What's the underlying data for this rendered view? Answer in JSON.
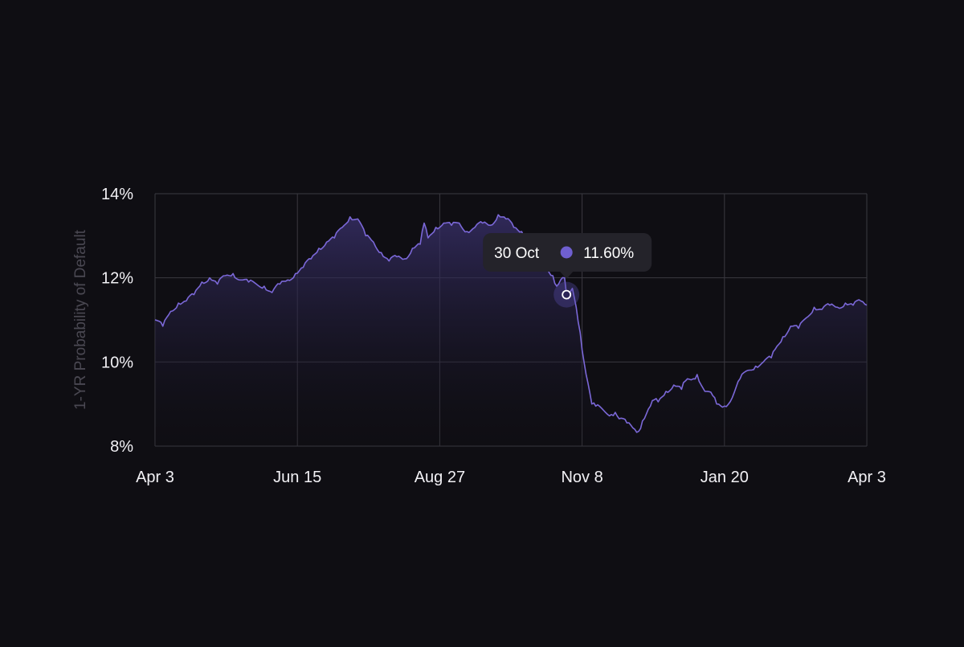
{
  "colors": {
    "background": "#0f0e13",
    "line": "#7b68d8",
    "area_top": "#3b3270",
    "grid": "#3a3940",
    "tooltip_bg": "#24232a",
    "tooltip_dot": "#6f5fd0",
    "tick_text": "#f2f1f5",
    "axis_title": "#4a4852"
  },
  "chart_data": {
    "type": "area",
    "title": "",
    "xlabel": "",
    "ylabel": "1-YR Probability of Default",
    "ylim": [
      8,
      14
    ],
    "y_ticks": [
      "14%",
      "12%",
      "10%",
      "8%"
    ],
    "x_ticks": [
      "Apr 3",
      "Jun 15",
      "Aug 27",
      "Nov 8",
      "Jan 20",
      "Apr 3"
    ],
    "grid": true,
    "legend": "none",
    "x_range_days": [
      0,
      365
    ],
    "series": [
      {
        "values": [
          [
            0,
            11.0
          ],
          [
            4,
            10.85
          ],
          [
            8,
            11.2
          ],
          [
            12,
            11.4
          ],
          [
            16,
            11.45
          ],
          [
            20,
            11.6
          ],
          [
            24,
            11.9
          ],
          [
            28,
            12.0
          ],
          [
            32,
            11.85
          ],
          [
            36,
            12.05
          ],
          [
            40,
            12.1
          ],
          [
            44,
            11.95
          ],
          [
            48,
            11.9
          ],
          [
            52,
            11.85
          ],
          [
            56,
            11.8
          ],
          [
            60,
            11.65
          ],
          [
            64,
            11.85
          ],
          [
            68,
            11.95
          ],
          [
            72,
            12.1
          ],
          [
            76,
            12.25
          ],
          [
            80,
            12.45
          ],
          [
            84,
            12.7
          ],
          [
            88,
            12.85
          ],
          [
            92,
            12.95
          ],
          [
            96,
            13.2
          ],
          [
            100,
            13.45
          ],
          [
            104,
            13.4
          ],
          [
            108,
            13.0
          ],
          [
            112,
            12.85
          ],
          [
            116,
            12.6
          ],
          [
            120,
            12.4
          ],
          [
            124,
            12.5
          ],
          [
            128,
            12.45
          ],
          [
            132,
            12.7
          ],
          [
            136,
            12.8
          ],
          [
            138,
            13.3
          ],
          [
            140,
            12.95
          ],
          [
            144,
            13.2
          ],
          [
            148,
            13.3
          ],
          [
            152,
            13.25
          ],
          [
            156,
            13.3
          ],
          [
            160,
            13.1
          ],
          [
            164,
            13.2
          ],
          [
            168,
            13.3
          ],
          [
            172,
            13.25
          ],
          [
            176,
            13.5
          ],
          [
            180,
            13.4
          ],
          [
            184,
            13.2
          ],
          [
            188,
            13.1
          ],
          [
            192,
            12.9
          ],
          [
            196,
            12.6
          ],
          [
            200,
            12.3
          ],
          [
            204,
            12.05
          ],
          [
            206,
            11.8
          ],
          [
            208,
            11.95
          ],
          [
            210,
            12.0
          ],
          [
            211,
            11.6
          ],
          [
            212,
            11.5
          ],
          [
            214,
            11.75
          ],
          [
            216,
            11.3
          ],
          [
            218,
            10.7
          ],
          [
            220,
            10.0
          ],
          [
            222,
            9.5
          ],
          [
            224,
            9.0
          ],
          [
            226,
            8.95
          ],
          [
            230,
            8.85
          ],
          [
            234,
            8.75
          ],
          [
            236,
            8.8
          ],
          [
            238,
            8.65
          ],
          [
            242,
            8.55
          ],
          [
            246,
            8.4
          ],
          [
            248,
            8.35
          ],
          [
            250,
            8.6
          ],
          [
            254,
            8.95
          ],
          [
            256,
            9.1
          ],
          [
            258,
            9.05
          ],
          [
            262,
            9.3
          ],
          [
            266,
            9.45
          ],
          [
            270,
            9.35
          ],
          [
            272,
            9.55
          ],
          [
            276,
            9.6
          ],
          [
            278,
            9.7
          ],
          [
            282,
            9.3
          ],
          [
            286,
            9.2
          ],
          [
            288,
            9.0
          ],
          [
            292,
            8.95
          ],
          [
            296,
            9.15
          ],
          [
            300,
            9.6
          ],
          [
            304,
            9.8
          ],
          [
            308,
            9.9
          ],
          [
            312,
            10.0
          ],
          [
            316,
            10.1
          ],
          [
            318,
            10.3
          ],
          [
            322,
            10.6
          ],
          [
            326,
            10.85
          ],
          [
            330,
            10.8
          ],
          [
            334,
            11.05
          ],
          [
            338,
            11.3
          ],
          [
            342,
            11.25
          ],
          [
            346,
            11.35
          ],
          [
            350,
            11.3
          ],
          [
            354,
            11.4
          ],
          [
            358,
            11.35
          ],
          [
            362,
            11.45
          ],
          [
            365,
            11.35
          ]
        ]
      }
    ],
    "tooltip": {
      "date": "30 Oct",
      "value": "11.60%",
      "x_day": 211,
      "y": 11.6
    }
  }
}
